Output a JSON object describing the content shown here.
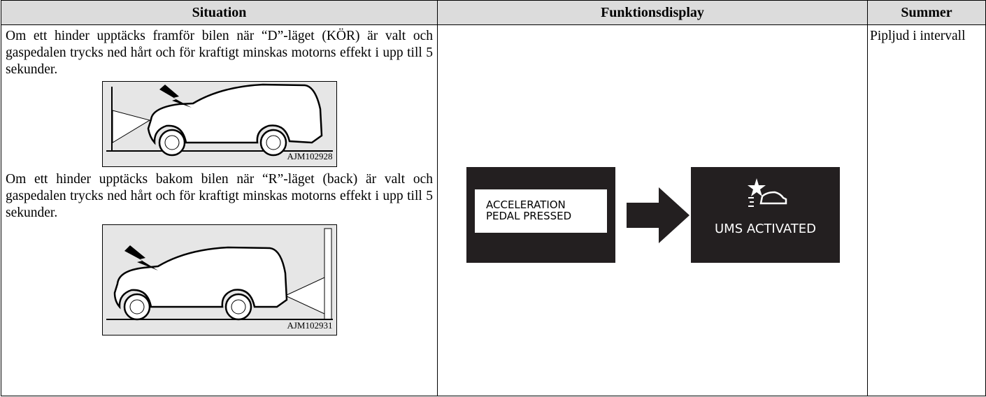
{
  "table": {
    "headers": [
      "Situation",
      "Funktionsdisplay",
      "Summer"
    ],
    "situations": [
      {
        "text": "Om ett hinder upptäcks framför bilen när “D”-läget (KÖR) är valt och gaspedalen trycks ned hårt och för kraftigt minskas motorns effekt i upp till 5 sekunder.",
        "figure": "AJM102928"
      },
      {
        "text": "Om ett hinder upptäcks bakom bilen när “R”-läget (back) är valt och gaspedalen trycks ned hårt och för kraftigt minskas motorns effekt i upp till 5 sekunder.",
        "figure": "AJM102931"
      }
    ],
    "display": {
      "panels": [
        {
          "lines": [
            "ACCELERATION",
            "PEDAL PRESSED"
          ]
        },
        {
          "lines": [
            "UMS ACTIVATED"
          ]
        }
      ]
    },
    "summer": "Pipljud i inter­vall"
  }
}
